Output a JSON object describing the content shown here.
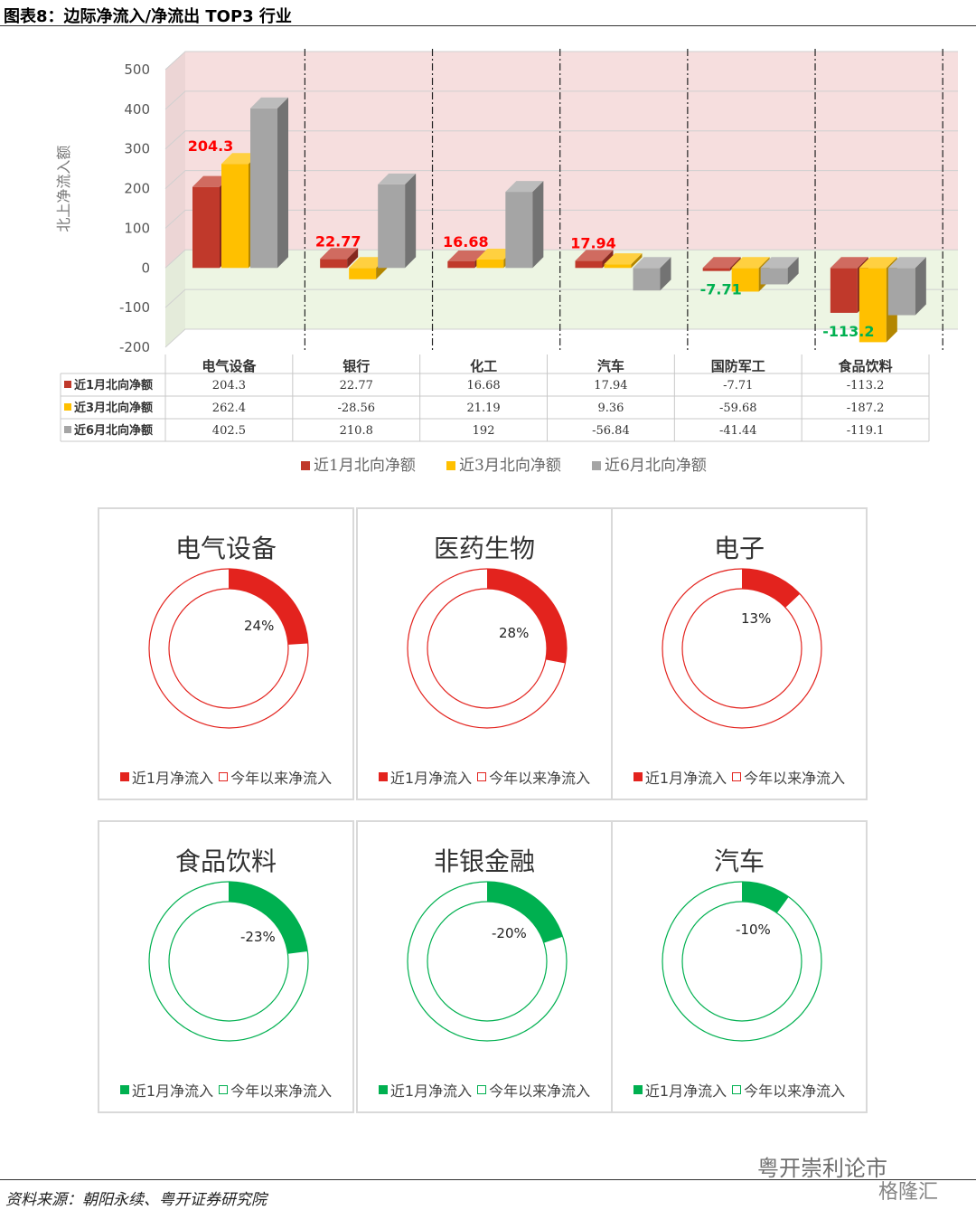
{
  "header": {
    "title": "图表8：边际净流入/净流出 TOP3 行业"
  },
  "chart_data": [
    {
      "type": "bar",
      "ylabel": "北上净流入额",
      "ylim": [
        -200,
        500
      ],
      "yticks": [
        500,
        400,
        300,
        200,
        100,
        0,
        -100,
        -200
      ],
      "categories": [
        "电气设备",
        "银行",
        "化工",
        "汽车",
        "国防军工",
        "食品饮料"
      ],
      "series": [
        {
          "name": "近1月北向净额",
          "color": "#c0392b",
          "values": [
            204.3,
            22.77,
            16.68,
            17.94,
            -7.71,
            -113.2
          ]
        },
        {
          "name": "近3月北向净额",
          "color": "#ffc000",
          "values": [
            262.4,
            -28.56,
            21.19,
            9.36,
            -59.68,
            -187.2
          ]
        },
        {
          "name": "近6月北向净额",
          "color": "#a5a5a5",
          "values": [
            402.5,
            210.8,
            192,
            -56.84,
            -41.44,
            -119.1
          ]
        }
      ],
      "data_labels": [
        "204.3",
        "22.77",
        "16.68",
        "17.94",
        "-7.71",
        "-113.2"
      ],
      "table": {
        "rows": [
          [
            "204.3",
            "22.77",
            "16.68",
            "17.94",
            "-7.71",
            "-113.2"
          ],
          [
            "262.4",
            "-28.56",
            "21.19",
            "9.36",
            "-59.68",
            "-187.2"
          ],
          [
            "402.5",
            "210.8",
            "192",
            "-56.84",
            "-41.44",
            "-119.1"
          ]
        ]
      },
      "legend": "bottom",
      "background_colors": {
        "positive": "#f6dede",
        "negative": "#edf5e3"
      }
    },
    {
      "type": "pie",
      "title": "电气设备",
      "values": [
        24,
        76
      ],
      "label": "24%",
      "colors": [
        "#e3231e",
        "#ffffff"
      ],
      "legend": [
        "近1月净流入",
        "今年以来净流入"
      ]
    },
    {
      "type": "pie",
      "title": "医药生物",
      "values": [
        28,
        72
      ],
      "label": "28%",
      "colors": [
        "#e3231e",
        "#ffffff"
      ],
      "legend": [
        "近1月净流入",
        "今年以来净流入"
      ]
    },
    {
      "type": "pie",
      "title": "电子",
      "values": [
        13,
        87
      ],
      "label": "13%",
      "colors": [
        "#e3231e",
        "#ffffff"
      ],
      "legend": [
        "近1月净流入",
        "今年以来净流入"
      ]
    },
    {
      "type": "pie",
      "title": "食品饮料",
      "values": [
        23,
        77
      ],
      "label": "-23%",
      "colors": [
        "#00b050",
        "#ffffff"
      ],
      "legend": [
        "近1月净流入",
        "今年以来净流入"
      ]
    },
    {
      "type": "pie",
      "title": "非银金融",
      "values": [
        20,
        80
      ],
      "label": "-20%",
      "colors": [
        "#00b050",
        "#ffffff"
      ],
      "legend": [
        "近1月净流入",
        "今年以来净流入"
      ]
    },
    {
      "type": "pie",
      "title": "汽车",
      "values": [
        10,
        90
      ],
      "label": "-10%",
      "colors": [
        "#00b050",
        "#ffffff"
      ],
      "legend": [
        "近1月净流入",
        "今年以来净流入"
      ]
    }
  ],
  "footer": {
    "source": "资料来源：朝阳永续、粤开证券研究院"
  },
  "watermark": {
    "text": "粤开崇利论市",
    "text2": "格隆汇"
  }
}
